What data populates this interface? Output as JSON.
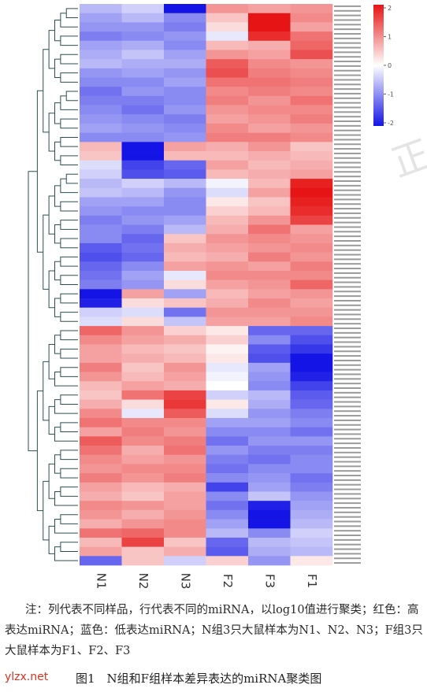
{
  "chart_data": {
    "type": "heatmap",
    "columns": [
      "N1",
      "N2",
      "N3",
      "F2",
      "F3",
      "F1"
    ],
    "colorbar": {
      "ticks": [
        "2",
        "1",
        "0",
        "-1",
        "-2"
      ],
      "vmin": -2,
      "vmax": 2,
      "low_color": "#1414e6",
      "mid_color": "#ffffff",
      "high_color": "#e61414"
    },
    "values": [
      [
        -0.6,
        -0.4,
        -2.2,
        0.9,
        0.8,
        0.9
      ],
      [
        -0.8,
        -0.6,
        -1.0,
        0.5,
        2.0,
        1.0
      ],
      [
        -0.9,
        -0.9,
        -1.1,
        0.3,
        2.0,
        0.8
      ],
      [
        -1.1,
        -1.0,
        -0.9,
        -0.2,
        1.8,
        1.2
      ],
      [
        -0.8,
        -0.7,
        -1.0,
        0.6,
        0.7,
        1.3
      ],
      [
        -0.7,
        -0.5,
        -0.8,
        0.9,
        0.8,
        1.5
      ],
      [
        -0.6,
        -0.7,
        -0.7,
        1.4,
        1.0,
        0.9
      ],
      [
        -0.9,
        -0.8,
        -0.9,
        1.5,
        1.1,
        1.0
      ],
      [
        -1.0,
        -1.0,
        -0.8,
        1.2,
        1.2,
        1.1
      ],
      [
        -1.2,
        -0.9,
        -1.0,
        1.0,
        1.1,
        1.0
      ],
      [
        -1.1,
        -1.1,
        -1.0,
        1.1,
        0.9,
        1.2
      ],
      [
        -1.0,
        -1.2,
        -0.9,
        0.9,
        1.0,
        1.0
      ],
      [
        -0.9,
        -1.0,
        -1.1,
        0.8,
        0.9,
        1.1
      ],
      [
        -0.8,
        -0.9,
        -1.0,
        1.0,
        0.8,
        0.9
      ],
      [
        -1.0,
        -1.0,
        -0.9,
        1.1,
        1.1,
        1.0
      ],
      [
        0.6,
        -2.2,
        0.8,
        0.7,
        0.9,
        0.5
      ],
      [
        0.5,
        -2.0,
        0.6,
        0.6,
        0.7,
        0.6
      ],
      [
        -0.3,
        -1.6,
        -1.3,
        0.8,
        0.6,
        0.7
      ],
      [
        -0.4,
        -1.5,
        -1.4,
        0.6,
        0.7,
        0.8
      ],
      [
        -0.6,
        -0.4,
        -0.6,
        -0.1,
        0.6,
        1.9
      ],
      [
        -0.5,
        -0.6,
        -0.9,
        -0.3,
        0.8,
        2.0
      ],
      [
        -0.8,
        -0.8,
        -1.0,
        0.2,
        0.5,
        1.9
      ],
      [
        -0.9,
        -1.0,
        -1.0,
        0.4,
        0.6,
        1.8
      ],
      [
        -1.1,
        -0.9,
        -0.8,
        0.6,
        0.9,
        1.6
      ],
      [
        -1.0,
        -1.1,
        -0.6,
        0.7,
        1.2,
        0.8
      ],
      [
        -1.0,
        -1.3,
        0.5,
        0.9,
        1.0,
        0.9
      ],
      [
        -1.4,
        -1.2,
        0.7,
        0.8,
        0.9,
        1.0
      ],
      [
        -1.5,
        -1.3,
        0.6,
        0.7,
        1.1,
        0.9
      ],
      [
        -1.3,
        -1.0,
        0.8,
        0.9,
        0.8,
        1.1
      ],
      [
        -1.2,
        -0.8,
        -0.2,
        1.0,
        1.0,
        1.0
      ],
      [
        -1.1,
        -0.9,
        0.3,
        0.8,
        0.9,
        1.3
      ],
      [
        -2.2,
        0.8,
        -0.8,
        0.6,
        0.8,
        0.9
      ],
      [
        -1.9,
        0.3,
        0.5,
        0.7,
        1.0,
        0.8
      ],
      [
        -0.4,
        -0.3,
        -1.2,
        0.9,
        0.9,
        0.9
      ],
      [
        -0.3,
        0.3,
        -0.5,
        0.8,
        0.8,
        1.0
      ],
      [
        1.3,
        0.9,
        0.4,
        0.2,
        -1.3,
        -1.3
      ],
      [
        1.0,
        0.8,
        0.7,
        0.4,
        -1.0,
        -1.5
      ],
      [
        0.8,
        0.6,
        0.5,
        0.1,
        -1.4,
        -1.7
      ],
      [
        0.8,
        0.7,
        0.6,
        0.2,
        -1.5,
        -2.1
      ],
      [
        1.1,
        0.5,
        0.9,
        -0.2,
        -0.8,
        -2.2
      ],
      [
        0.9,
        0.6,
        0.8,
        -0.1,
        -0.9,
        -1.9
      ],
      [
        0.6,
        0.8,
        0.7,
        0.0,
        -1.0,
        -1.6
      ],
      [
        0.5,
        1.2,
        1.6,
        -0.4,
        -0.6,
        -1.4
      ],
      [
        0.7,
        0.3,
        1.7,
        0.2,
        -0.7,
        -1.3
      ],
      [
        1.0,
        -0.2,
        1.4,
        -0.3,
        -0.9,
        -1.1
      ],
      [
        1.2,
        1.0,
        1.0,
        -0.8,
        -0.8,
        -1.0
      ],
      [
        0.8,
        1.1,
        0.9,
        -1.0,
        -1.0,
        -1.2
      ],
      [
        1.4,
        1.0,
        1.1,
        -1.2,
        -0.9,
        -0.9
      ],
      [
        1.2,
        0.7,
        1.2,
        -0.9,
        -1.1,
        -1.1
      ],
      [
        1.0,
        0.8,
        0.9,
        -1.1,
        -1.2,
        -1.0
      ],
      [
        0.9,
        1.0,
        1.0,
        -1.2,
        -1.0,
        -1.0
      ],
      [
        1.1,
        0.9,
        1.1,
        -1.0,
        -0.9,
        -1.2
      ],
      [
        0.8,
        0.6,
        0.7,
        -1.6,
        -0.8,
        -1.1
      ],
      [
        0.7,
        0.5,
        0.8,
        -1.0,
        -0.5,
        -0.9
      ],
      [
        1.0,
        0.9,
        0.8,
        -1.2,
        -1.9,
        -0.8
      ],
      [
        0.9,
        0.7,
        0.9,
        -1.0,
        -2.2,
        -0.7
      ],
      [
        0.7,
        0.9,
        1.0,
        -0.8,
        -2.2,
        -0.6
      ],
      [
        1.2,
        1.3,
        1.0,
        -0.6,
        -1.0,
        -0.4
      ],
      [
        0.6,
        1.6,
        0.5,
        -1.3,
        -0.6,
        -0.5
      ],
      [
        0.8,
        0.5,
        0.7,
        -1.4,
        -0.7,
        -0.6
      ],
      [
        -1.3,
        0.5,
        -0.4,
        0.4,
        -0.9,
        0.2
      ]
    ]
  },
  "caption": {
    "note": "注：列代表不同样品，行代表不同的miRNA，以log10值进行聚类；红色：高表达miRNA；蓝色：低表达miRNA；N组3只大鼠样本为N1、N2、N3；F组3只大鼠样本为F1、F2、F3",
    "source": "ylzx.net",
    "title": "图1　N组和F组样本差异表达的miRNA聚类图"
  }
}
